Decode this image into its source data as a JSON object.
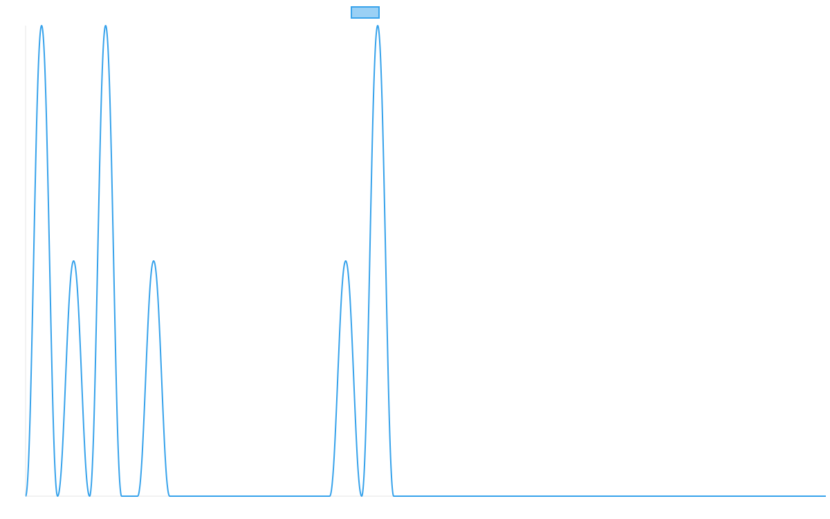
{
  "chart_data": {
    "type": "line",
    "x": [
      0,
      1,
      2,
      3,
      4,
      5,
      6,
      7,
      8,
      9,
      10,
      11,
      12,
      13,
      14,
      15,
      16,
      17,
      18,
      19,
      20,
      21,
      22,
      23,
      24,
      25,
      26,
      27,
      28,
      29,
      30,
      31,
      32,
      33,
      34,
      35,
      36,
      37,
      38,
      39,
      40,
      41,
      42,
      43,
      44,
      45,
      46,
      47,
      48,
      49,
      50
    ],
    "series": [
      {
        "values": [
          0,
          1,
          0,
          0.5,
          0,
          1,
          0,
          0,
          0.5,
          0,
          0,
          0,
          0,
          0,
          0,
          0,
          0,
          0,
          0,
          0,
          0.5,
          0,
          1,
          0,
          0,
          0,
          0,
          0,
          0,
          0,
          0,
          0,
          0,
          0,
          0,
          0,
          0,
          0,
          0,
          0,
          0,
          0,
          0,
          0,
          0,
          0,
          0,
          0,
          0,
          0,
          0
        ],
        "color": "#36a2eb",
        "fill": "#9ad0f5"
      }
    ],
    "xlim": [
      0,
      50
    ],
    "ylim": [
      0,
      1
    ],
    "show_axes": false,
    "show_grid": false,
    "legend": {
      "position": "top-center"
    }
  }
}
